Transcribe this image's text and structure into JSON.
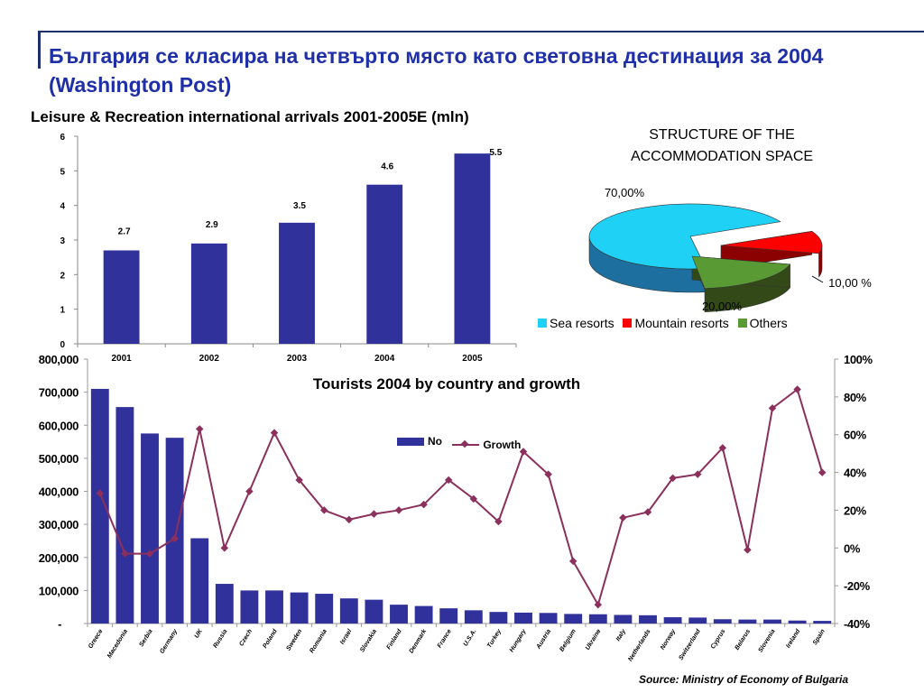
{
  "slide": {
    "title": "България се класира на четвърто място като световна дестинация за 2004 (Washington Post)",
    "source": "Source: Ministry of Economy of Bulgaria"
  },
  "chart_data": [
    {
      "type": "bar",
      "title": "Leisure & Recreation international arrivals 2001-2005E (mln)",
      "categories": [
        "2001",
        "2002",
        "2003",
        "2004",
        "2005"
      ],
      "values": [
        2.7,
        2.9,
        3.5,
        4.6,
        5.5
      ],
      "data_labels": [
        "2.7",
        "2.9",
        "3.5",
        "4.6",
        "5.5"
      ],
      "ylim": [
        0,
        6
      ],
      "y_ticks": [
        "0",
        "1",
        "2",
        "3",
        "4",
        "5",
        "6"
      ],
      "bar_color": "#31319b"
    },
    {
      "type": "pie",
      "title_lines": [
        "STRUCTURE OF THE",
        "ACCOMMODATION SPACE"
      ],
      "categories": [
        "Sea resorts",
        "Mountain resorts",
        "Others"
      ],
      "values": [
        70,
        10,
        20
      ],
      "data_labels": [
        "70,00%",
        "10,00 %",
        "20,00%"
      ],
      "colors": [
        "#1fd1f5",
        "#ff0000",
        "#5a9a35"
      ],
      "three_d": true
    },
    {
      "type": "bar",
      "title": "Tourists 2004 by country and growth",
      "categories": [
        "Greece",
        "Macedonia",
        "Serbia",
        "Germany",
        "UK",
        "Russia",
        "Czech",
        "Poland",
        "Sweden",
        "Romania",
        "Israel",
        "Slovakia",
        "Finland",
        "Denmark",
        "France",
        "U.S.A.",
        "Turkey",
        "Hungary",
        "Austria",
        "Belgium",
        "Ukraine",
        "Italy",
        "Netherlands",
        "Norway",
        "Switzerland",
        "Cyprus",
        "Belarus",
        "Slovenia",
        "Ireland",
        "Spain"
      ],
      "series": [
        {
          "name": "No",
          "type": "bar",
          "axis": "left",
          "color": "#31319b",
          "values": [
            710000,
            655000,
            575000,
            562000,
            258000,
            120000,
            100000,
            100000,
            94000,
            90000,
            76000,
            72000,
            57000,
            53000,
            46000,
            40000,
            35000,
            33000,
            32000,
            29000,
            28000,
            26000,
            25000,
            19000,
            18000,
            13000,
            12000,
            12000,
            9000,
            8000
          ]
        },
        {
          "name": "Growth",
          "type": "line",
          "axis": "right",
          "color": "#8b2f5c",
          "values": [
            29,
            -3,
            -3,
            5,
            63,
            0,
            30,
            61,
            36,
            20,
            15,
            18,
            20,
            23,
            36,
            26,
            14,
            51,
            39,
            -7,
            -30,
            16,
            19,
            37,
            39,
            53,
            -1,
            74,
            84,
            40
          ]
        }
      ],
      "y_left": {
        "range": [
          0,
          800000
        ],
        "ticks": [
          "-",
          "100,000",
          "200,000",
          "300,000",
          "400,000",
          "500,000",
          "600,000",
          "700,000",
          "800,000"
        ]
      },
      "y_right": {
        "range": [
          -40,
          100
        ],
        "ticks": [
          "-40%",
          "-20%",
          "0%",
          "20%",
          "40%",
          "60%",
          "80%",
          "100%"
        ]
      },
      "legend": "top-center"
    }
  ]
}
